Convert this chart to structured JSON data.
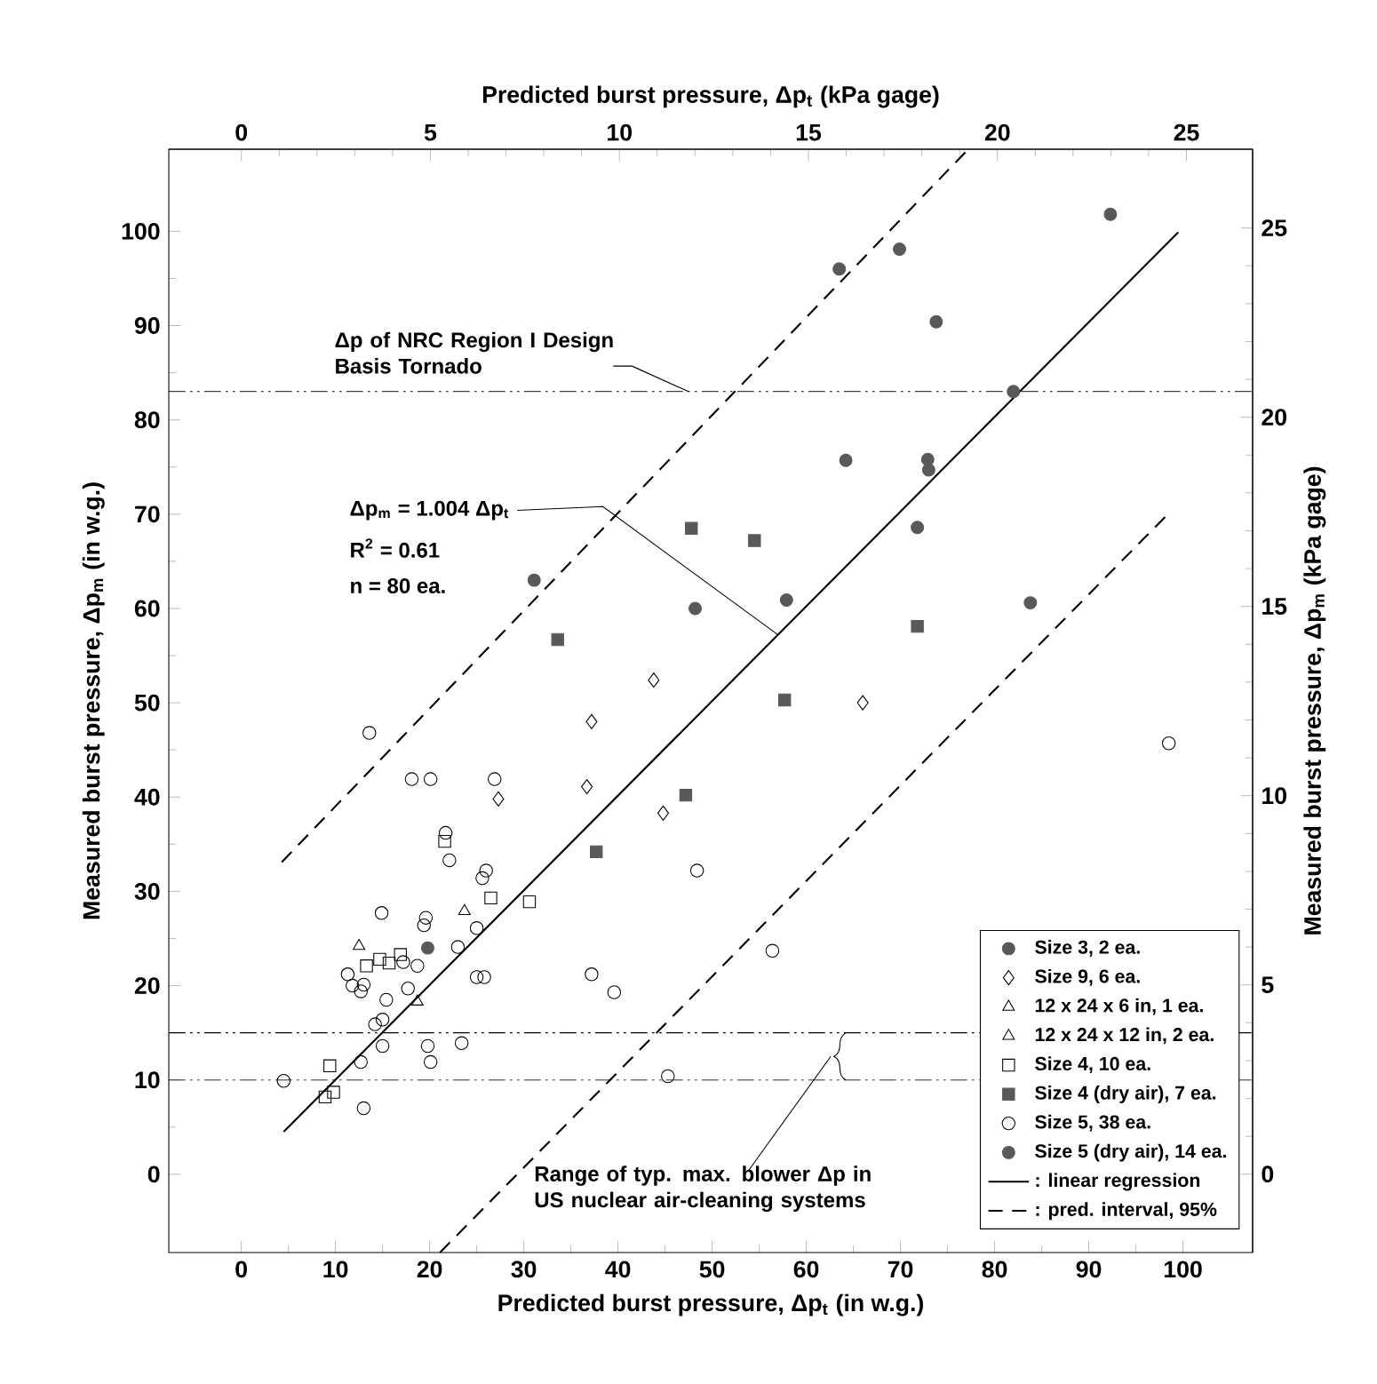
{
  "chart_data": {
    "type": "scatter",
    "xlabel": "Predicted burst pressure, Δp$_{t}$ (in w.g.)",
    "x2label": "Predicted burst pressure, Δp$_{t}$ (kPa gage)",
    "ylabel": "Measured burst pressure, Δp$_{m}$ (in w.g.)",
    "y2label": "Measured burst pressure, Δp$_{m}$ (kPa gage)",
    "xlim": [
      -7.7,
      107.4
    ],
    "xticks": [
      0,
      10,
      20,
      30,
      40,
      50,
      60,
      70,
      80,
      90,
      100
    ],
    "ylim": [
      -8.3,
      108.7
    ],
    "yticks": [
      0,
      10,
      20,
      30,
      40,
      50,
      60,
      70,
      80,
      90,
      100
    ],
    "x2lim": [
      -1.92,
      26.75
    ],
    "x2ticks": [
      0,
      5,
      10,
      15,
      20,
      25
    ],
    "y2lim": [
      -2.07,
      27.08
    ],
    "y2ticks": [
      0,
      5,
      10,
      15,
      20,
      25
    ],
    "legend": "bottom right",
    "series": [
      {
        "name": "Size 3, 2 ea.",
        "color": "#595959",
        "marker": "circle",
        "x": [
          19.8
        ],
        "values": [
          24.0
        ]
      },
      {
        "name": "Size 9, 6 ea.",
        "color": "#000000",
        "marker": "diamond",
        "x": [
          43.8,
          37.2,
          36.7,
          44.8,
          66.0,
          27.3
        ],
        "values": [
          52.4,
          48.0,
          41.1,
          38.3,
          50.0,
          39.8
        ]
      },
      {
        "name": "12 x 24 x 6 in, 1 ea.",
        "color": "#000000",
        "marker": "triangle-down",
        "x": [
          23.7
        ],
        "values": [
          27.9
        ]
      },
      {
        "name": "12 x 24 x 12 in, 2 ea.",
        "color": "#000000",
        "marker": "triangle",
        "x": [
          12.5,
          18.7
        ],
        "values": [
          24.2,
          18.3
        ]
      },
      {
        "name": "Size 4, 10 ea.",
        "color": "#000000",
        "marker": "square",
        "x": [
          21.6,
          26.5,
          30.6,
          13.3,
          14.7,
          15.7,
          16.9,
          9.4,
          8.9,
          9.8
        ],
        "values": [
          35.3,
          29.3,
          28.9,
          22.1,
          22.8,
          22.4,
          23.3,
          11.5,
          8.2,
          8.7
        ]
      },
      {
        "name": "Size 4 (dry air), 7 ea.",
        "color": "#595959",
        "marker": "square",
        "x": [
          33.6,
          54.5,
          47.8,
          71.8,
          47.2,
          37.7,
          57.7
        ],
        "values": [
          56.7,
          67.2,
          68.5,
          58.1,
          40.2,
          34.2,
          50.3
        ]
      },
      {
        "name": "Size 5, 38 ea.",
        "color": "#000000",
        "marker": "circle",
        "x": [
          13.6,
          18.1,
          20.1,
          26.9,
          21.7,
          22.1,
          26.0,
          25.6,
          14.9,
          19.6,
          19.4,
          25.0,
          23.0,
          11.3,
          17.2,
          18.7,
          11.8,
          13.0,
          12.7,
          17.7,
          15.4,
          25.0,
          25.8,
          37.2,
          39.6,
          14.2,
          15.0,
          15.0,
          12.7,
          19.8,
          20.1,
          23.4,
          4.5,
          13.0,
          45.3,
          48.4,
          56.4,
          98.5
        ],
        "values": [
          46.8,
          41.9,
          41.9,
          41.9,
          36.2,
          33.3,
          32.2,
          31.4,
          27.7,
          27.2,
          26.4,
          26.1,
          24.1,
          21.2,
          22.5,
          22.1,
          20.0,
          20.1,
          19.4,
          19.7,
          18.5,
          20.9,
          20.9,
          21.2,
          19.3,
          15.9,
          16.4,
          13.6,
          11.9,
          13.6,
          11.9,
          13.9,
          9.9,
          7.0,
          10.4,
          32.2,
          23.7,
          45.7
        ]
      },
      {
        "name": "Size 5 (dry air), 14 ea.",
        "color": "#595959",
        "marker": "circle",
        "x": [
          31.1,
          48.2,
          92.3,
          69.9,
          63.5,
          73.8,
          82.0,
          64.2,
          72.9,
          73.0,
          71.8,
          57.9,
          83.8
        ],
        "values": [
          63.0,
          60.0,
          101.8,
          98.1,
          96.0,
          90.4,
          83.0,
          75.7,
          75.8,
          74.7,
          68.6,
          60.9,
          60.6
        ]
      },
      {
        "name": ": linear regression",
        "type": "line",
        "color": "#000000",
        "line_style": "solid",
        "x": [
          4.5,
          99.5
        ],
        "values": [
          4.5,
          99.9
        ]
      },
      {
        "name": ": pred. interval, 95%",
        "type": "line",
        "color": "#000000",
        "line_style": "dashed",
        "x": [
          4.3,
          77.2
        ],
        "values": [
          33.1,
          108.7
        ]
      },
      {
        "type": "line",
        "color": "#000000",
        "line_style": "dashed",
        "x": [
          21.1,
          98.3
        ],
        "values": [
          -8.3,
          69.9
        ]
      }
    ],
    "ref_lines": [
      {
        "axis": "y",
        "value": 83,
        "label": "Δp of NRC Region I Design Basis Tornado",
        "line_style": "dashdot"
      },
      {
        "axis": "y",
        "value": 15,
        "line_style": "dashdot"
      },
      {
        "axis": "y",
        "value": 10,
        "line_style": "dashdot"
      }
    ],
    "annotations": [
      {
        "text": "Δp$_{m}$ = 1.004 Δp$_{t}$",
        "x": 57,
        "y": 57.2
      },
      "R$^{2}$ = 0.61",
      "n = 80 ea.",
      "Range of typ. max. blower Δp in US nuclear air-cleaning systems"
    ]
  }
}
